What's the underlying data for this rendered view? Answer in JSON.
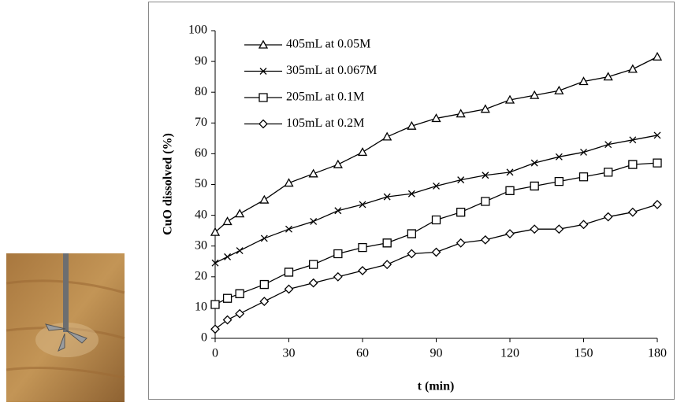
{
  "chart_data": {
    "type": "line",
    "xlabel": "t (min)",
    "ylabel": "CuO dissolved (%)",
    "x": [
      0,
      5,
      10,
      20,
      30,
      40,
      50,
      60,
      70,
      80,
      90,
      100,
      110,
      120,
      130,
      140,
      150,
      160,
      170,
      180
    ],
    "xlim": [
      0,
      180
    ],
    "xticks": [
      0,
      30,
      60,
      90,
      120,
      150,
      180
    ],
    "ylim": [
      0,
      100
    ],
    "yticks": [
      0,
      10,
      20,
      30,
      40,
      50,
      60,
      70,
      80,
      90,
      100
    ],
    "grid": false,
    "legend": "upper left",
    "series": [
      {
        "name": "405mL at 0.05M",
        "color": "#000000",
        "marker": "triangle",
        "values": [
          34.5,
          38,
          40.5,
          45,
          50.5,
          53.5,
          56.5,
          60.5,
          65.5,
          69,
          71.5,
          73,
          74.5,
          77.5,
          79,
          80.5,
          83.5,
          85,
          87.5,
          91.5
        ]
      },
      {
        "name": "305mL  at 0.067M",
        "color": "#000000",
        "marker": "x",
        "values": [
          24.5,
          26.5,
          28.5,
          32.5,
          35.5,
          38,
          41.5,
          43.5,
          46,
          47,
          49.5,
          51.5,
          53,
          54,
          57,
          59,
          60.5,
          63,
          64.5,
          66
        ]
      },
      {
        "name": "205mL at 0.1M",
        "color": "#000000",
        "marker": "square",
        "values": [
          11,
          13,
          14.5,
          17.5,
          21.5,
          24,
          27.5,
          29.5,
          31,
          34,
          38.5,
          41,
          44.5,
          48,
          49.5,
          51,
          52.5,
          54,
          56.5,
          57
        ]
      },
      {
        "name": "105mL at 0.2M",
        "color": "#000000",
        "marker": "diamond",
        "values": [
          3,
          6,
          8,
          12,
          16,
          18,
          20,
          22,
          24,
          27.5,
          28,
          31,
          32,
          34,
          35.5,
          35.5,
          37,
          39.5,
          41,
          43.5
        ]
      }
    ]
  }
}
